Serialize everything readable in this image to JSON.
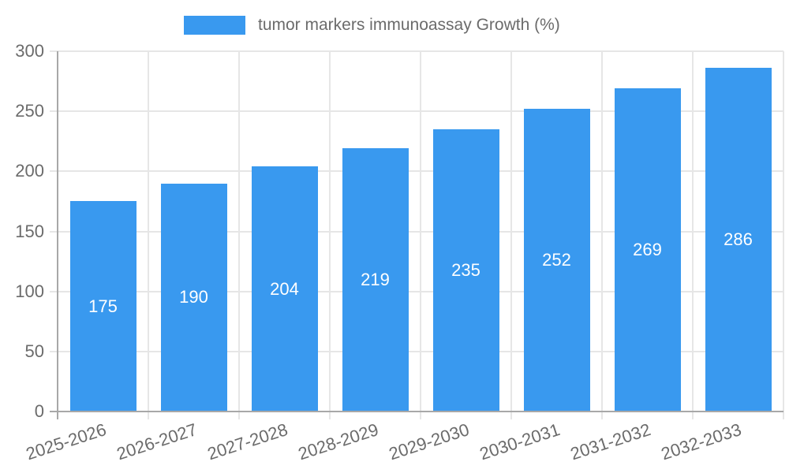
{
  "chart_data": {
    "type": "bar",
    "title": "",
    "legend": {
      "label": "tumor markers immunoassay Growth (%)",
      "position": "top"
    },
    "categories": [
      "2025-2026",
      "2026-2027",
      "2027-2028",
      "2028-2029",
      "2029-2030",
      "2030-2031",
      "2031-2032",
      "2032-2033"
    ],
    "values": [
      175,
      190,
      204,
      219,
      235,
      252,
      269,
      286
    ],
    "value_labels_shown": true,
    "xlabel": "",
    "ylabel": "",
    "ylim": [
      0,
      300
    ],
    "yticks": [
      0,
      50,
      100,
      150,
      200,
      250,
      300
    ],
    "grid": {
      "horizontal": true,
      "vertical": true
    },
    "x_tick_label_rotation_deg": -18,
    "legend_position": "top",
    "colors": {
      "bar": "#3999EF",
      "bar_value_label": "#ffffff",
      "axis_text": "#6b6b6b",
      "legend_text": "#6b6b6b",
      "gridline": "#e6e6e6",
      "axis_line": "#a8a8a8",
      "background": "#ffffff"
    }
  }
}
